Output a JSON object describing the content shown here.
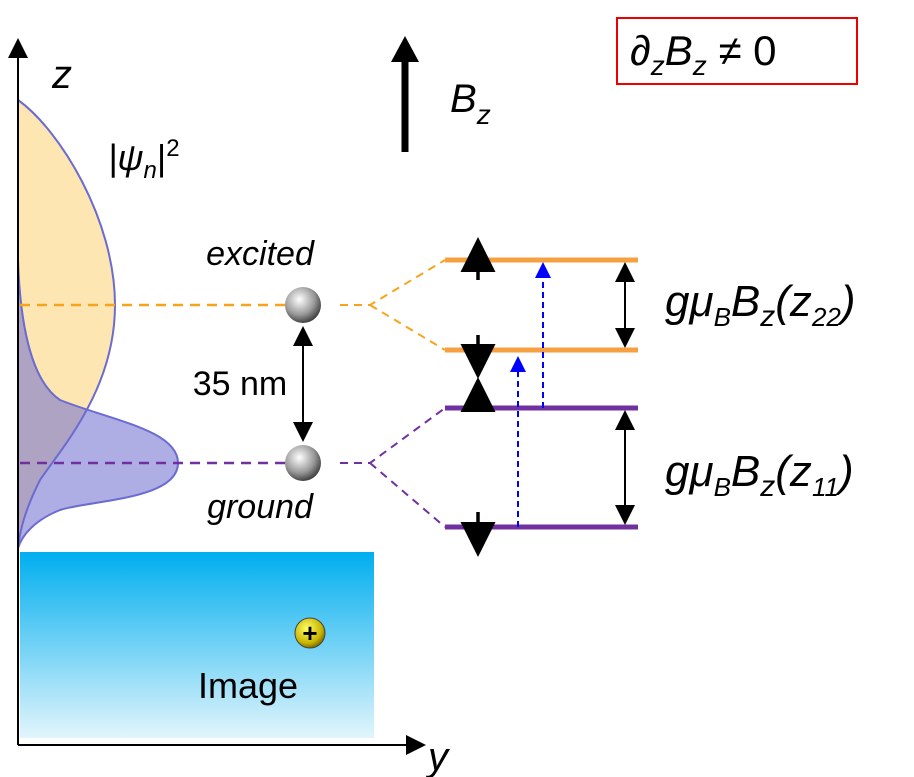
{
  "axes": {
    "z": "z",
    "y": "y"
  },
  "wavefunction_label": [
    "|ψ",
    "n",
    "|",
    "2"
  ],
  "field_label": [
    "B",
    "z"
  ],
  "condition": [
    "∂",
    "z",
    "B",
    "z",
    " ≠ 0"
  ],
  "states": {
    "excited": "excited",
    "ground": "ground",
    "separation": "35 nm"
  },
  "image": {
    "label": "Image",
    "charge": "+"
  },
  "splittings": [
    [
      "gμ",
      "B",
      "B",
      "z",
      "(z",
      "22",
      ")"
    ],
    [
      "gμ",
      "B",
      "B",
      "z",
      "(z",
      "11",
      ")"
    ]
  ]
}
